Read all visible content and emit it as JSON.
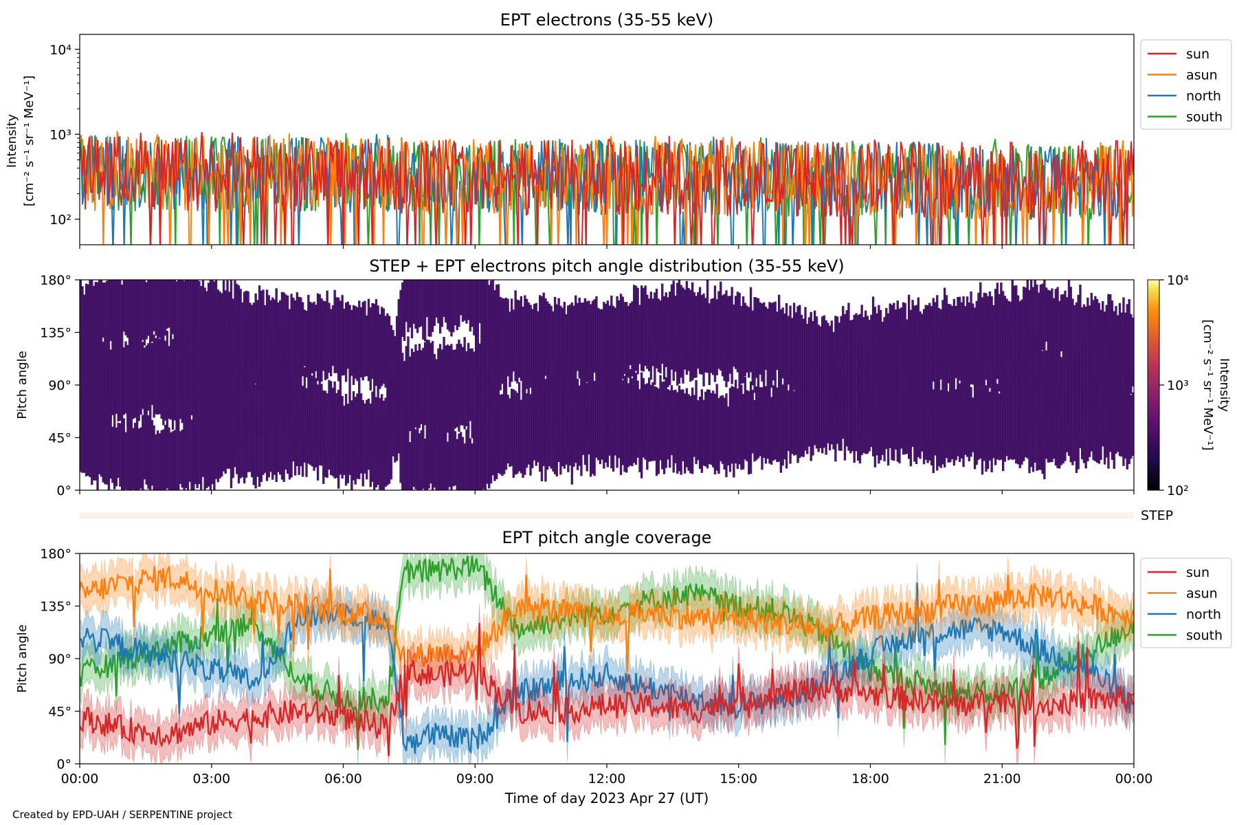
{
  "footer": "Created by EPD-UAH / SERPENTINE project",
  "colors": {
    "sun": "#d62728",
    "asun": "#ff7f0e",
    "north": "#1f77b4",
    "south": "#2ca02c",
    "pad_fill": "#4a1670",
    "pad_line": "#2a0a4a",
    "step_band": "#fdf0e8"
  },
  "chart_data": [
    {
      "type": "line",
      "title": "EPT electrons (35-55 keV)",
      "ylabel": [
        "Intensity",
        "[cm⁻² s⁻¹ sr⁻¹ MeV⁻¹]"
      ],
      "yscale": "log",
      "ylim": [
        50,
        15000
      ],
      "yticks": [
        "10²",
        "10³",
        "10⁴"
      ],
      "legend_position": "outside-right-top",
      "series": [
        {
          "name": "sun",
          "color": "#d62728",
          "typical_range": [
            80,
            800
          ]
        },
        {
          "name": "asun",
          "color": "#ff7f0e",
          "typical_range": [
            100,
            1000
          ]
        },
        {
          "name": "north",
          "color": "#1f77b4",
          "typical_range": [
            80,
            900
          ]
        },
        {
          "name": "south",
          "color": "#2ca02c",
          "typical_range": [
            90,
            1100
          ]
        }
      ],
      "x_range": [
        "2023-04-27 00:00",
        "2023-04-28 00:00"
      ]
    },
    {
      "type": "heatmap",
      "title": "STEP + EPT electrons pitch angle distribution (35-55 keV)",
      "ylabel": "Pitch angle",
      "ylim": [
        0,
        180
      ],
      "yticks": [
        "0°",
        "45°",
        "90°",
        "135°",
        "180°"
      ],
      "colorbar": {
        "label": [
          "Intensity",
          "[cm⁻² s⁻¹ sr⁻¹ MeV⁻¹]"
        ],
        "scale": "log",
        "range": [
          100,
          10000
        ],
        "ticks": [
          "10²",
          "10³",
          "10⁴"
        ],
        "colormap": "inferno"
      },
      "step_label": "STEP"
    },
    {
      "type": "line",
      "title": "EPT pitch angle coverage",
      "ylabel": "Pitch angle",
      "ylim": [
        0,
        180
      ],
      "yticks": [
        "0°",
        "45°",
        "90°",
        "135°",
        "180°"
      ],
      "xlabel": "Time of day 2023 Apr 27 (UT)",
      "xticks": [
        "00:00",
        "03:00",
        "06:00",
        "09:00",
        "12:00",
        "15:00",
        "18:00",
        "21:00",
        "00:00"
      ],
      "legend_position": "outside-right-top",
      "series": [
        {
          "name": "sun",
          "color": "#d62728",
          "hours": [
            0,
            1,
            2,
            3,
            4,
            5,
            6,
            7,
            7.4,
            8,
            9,
            10,
            11,
            12,
            13,
            14,
            15,
            16,
            17,
            18,
            19,
            20,
            21,
            22,
            23,
            24
          ],
          "values": [
            40,
            30,
            25,
            35,
            40,
            45,
            40,
            30,
            80,
            75,
            80,
            45,
            45,
            50,
            50,
            45,
            55,
            60,
            65,
            60,
            55,
            50,
            55,
            50,
            55,
            55
          ]
        },
        {
          "name": "asun",
          "color": "#ff7f0e",
          "hours": [
            0,
            1,
            2,
            3,
            4,
            5,
            6,
            7,
            7.4,
            8,
            9,
            10,
            11,
            12,
            13,
            14,
            15,
            16,
            17,
            18,
            19,
            20,
            21,
            22,
            23,
            24
          ],
          "values": [
            145,
            155,
            160,
            150,
            140,
            135,
            130,
            125,
            90,
            95,
            95,
            135,
            130,
            125,
            130,
            125,
            125,
            120,
            115,
            125,
            130,
            135,
            140,
            145,
            135,
            125
          ]
        },
        {
          "name": "north",
          "color": "#1f77b4",
          "hours": [
            0,
            1,
            2,
            3,
            4,
            5,
            6,
            7,
            7.4,
            8,
            9,
            10,
            11,
            12,
            13,
            14,
            15,
            16,
            17,
            18,
            19,
            20,
            21,
            22,
            23,
            24
          ],
          "values": [
            110,
            100,
            90,
            80,
            70,
            125,
            130,
            120,
            20,
            25,
            20,
            60,
            70,
            75,
            65,
            55,
            50,
            55,
            70,
            95,
            110,
            115,
            115,
            95,
            80,
            50
          ]
        },
        {
          "name": "south",
          "color": "#2ca02c",
          "hours": [
            0,
            1,
            2,
            3,
            4,
            5,
            6,
            7,
            7.4,
            8,
            9,
            10,
            11,
            12,
            13,
            14,
            15,
            16,
            17,
            18,
            19,
            20,
            21,
            22,
            23,
            24
          ],
          "values": [
            75,
            90,
            100,
            110,
            120,
            70,
            55,
            55,
            165,
            165,
            170,
            115,
            125,
            130,
            140,
            145,
            135,
            130,
            110,
            80,
            70,
            60,
            60,
            75,
            95,
            120
          ]
        }
      ]
    }
  ]
}
